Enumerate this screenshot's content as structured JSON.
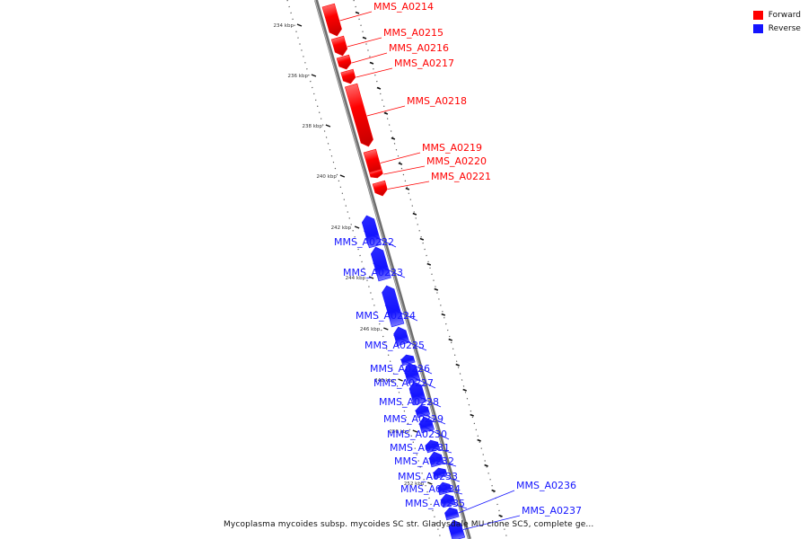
{
  "colors": {
    "forward": "#ff0000",
    "reverse": "#1414ff"
  },
  "legend": [
    {
      "label": "Forward",
      "color": "#ff0000"
    },
    {
      "label": "Reverse",
      "color": "#1414ff"
    }
  ],
  "caption": "Mycoplasma mycoides subsp. mycoides SC str. Gladysdale MU clone SC5, complete ge...",
  "ticks": [
    "234 kbp",
    "236 kbp",
    "238 kbp",
    "240 kbp",
    "242 kbp",
    "244 kbp",
    "246 kbp",
    "248 kbp",
    "250 kbp",
    "252 kbp"
  ],
  "genes": [
    {
      "name": "MMS_A0214",
      "strand": "forward"
    },
    {
      "name": "MMS_A0215",
      "strand": "forward"
    },
    {
      "name": "MMS_A0216",
      "strand": "forward"
    },
    {
      "name": "MMS_A0217",
      "strand": "forward"
    },
    {
      "name": "MMS_A0218",
      "strand": "forward"
    },
    {
      "name": "MMS_A0219",
      "strand": "forward"
    },
    {
      "name": "MMS_A0220",
      "strand": "forward"
    },
    {
      "name": "MMS_A0221",
      "strand": "forward"
    },
    {
      "name": "MMS_A0222",
      "strand": "reverse"
    },
    {
      "name": "MMS_A0223",
      "strand": "reverse"
    },
    {
      "name": "MMS_A0224",
      "strand": "reverse"
    },
    {
      "name": "MMS_A0225",
      "strand": "reverse"
    },
    {
      "name": "MMS_A0226",
      "strand": "reverse"
    },
    {
      "name": "MMS_A0227",
      "strand": "reverse"
    },
    {
      "name": "MMS_A0228",
      "strand": "reverse"
    },
    {
      "name": "MMS_A0229",
      "strand": "reverse"
    },
    {
      "name": "MMS_A0230",
      "strand": "reverse"
    },
    {
      "name": "MMS_A0231",
      "strand": "reverse"
    },
    {
      "name": "MMS_A0232",
      "strand": "reverse"
    },
    {
      "name": "MMS_A0233",
      "strand": "reverse"
    },
    {
      "name": "MMS_A0234",
      "strand": "reverse"
    },
    {
      "name": "MMS_A0235",
      "strand": "reverse"
    },
    {
      "name": "MMS_A0236",
      "strand": "reverse"
    },
    {
      "name": "MMS_A0237",
      "strand": "reverse"
    }
  ]
}
